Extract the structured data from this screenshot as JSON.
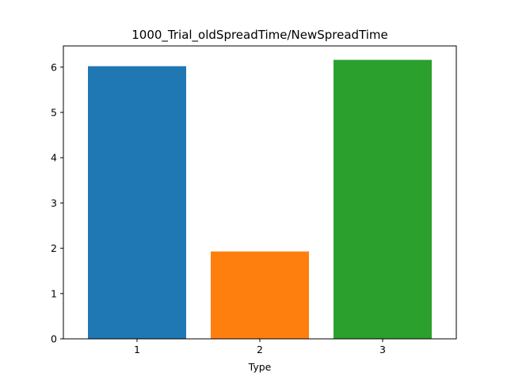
{
  "chart_data": {
    "type": "bar",
    "title": "1000_Trial_oldSpreadTime/NewSpreadTime",
    "xlabel": "Type",
    "ylabel": "",
    "categories": [
      "1",
      "2",
      "3"
    ],
    "values": [
      6.02,
      1.93,
      6.16
    ],
    "colors": [
      "#1f77b4",
      "#ff7f0e",
      "#2ca02c"
    ],
    "ylim": [
      0,
      6.468
    ],
    "yticks": [
      "0",
      "1",
      "2",
      "3",
      "4",
      "5",
      "6"
    ],
    "grid": false,
    "legend": "none"
  }
}
